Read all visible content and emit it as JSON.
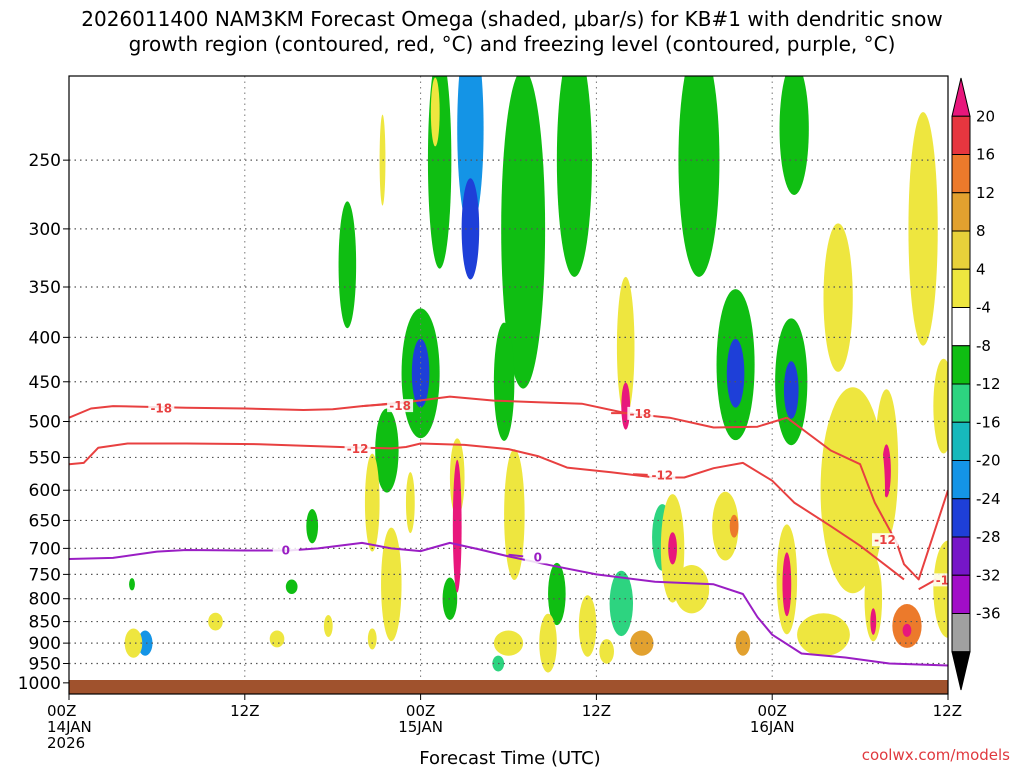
{
  "chart_data": {
    "type": "heatmap",
    "title_lines": [
      "2026011400 NAM3KM Forecast Omega (shaded, μbar/s) for KB#1 with dendritic snow",
      "growth region (contoured, red, °C) and freezing level (contoured, purple, °C)"
    ],
    "xlabel": "Forecast Time (UTC)",
    "x_ticks": [
      {
        "h": 0,
        "lines": [
          "00Z",
          "14JAN",
          "2026"
        ]
      },
      {
        "h": 12,
        "lines": [
          "12Z"
        ]
      },
      {
        "h": 24,
        "lines": [
          "00Z",
          "15JAN"
        ]
      },
      {
        "h": 36,
        "lines": [
          "12Z"
        ]
      },
      {
        "h": 48,
        "lines": [
          "00Z",
          "16JAN"
        ]
      },
      {
        "h": 60,
        "lines": [
          "12Z"
        ]
      }
    ],
    "x_range_hours": [
      0,
      60
    ],
    "y_ticks": [
      250,
      300,
      350,
      400,
      450,
      500,
      550,
      600,
      650,
      700,
      750,
      800,
      850,
      900,
      950,
      1000
    ],
    "y_range_hPa": [
      200,
      1030
    ],
    "y_scale": "log-pressure",
    "grid": true,
    "colorbar": {
      "labels": [
        "20",
        "16",
        "12",
        "8",
        "4",
        "-4",
        "-8",
        "-12",
        "-16",
        "-20",
        "-24",
        "-28",
        "-32",
        "-36"
      ],
      "colors": [
        "#e8177c",
        "#e6363f",
        "#ec7a2b",
        "#e2a12f",
        "#e8d13a",
        "#eee63f",
        "#ffffff",
        "#0fbe12",
        "#2dd480",
        "#17b9bc",
        "#1494e6",
        "#1e3fd8",
        "#7616c8",
        "#a20dc8",
        "#a0a0a0",
        "#000000"
      ]
    },
    "omega_cells": [
      {
        "h": 25.3,
        "p": 250,
        "dh": 0.8,
        "dp": 140,
        "v": -8
      },
      {
        "h": 27.4,
        "p": 230,
        "dh": 0.9,
        "dp": 120,
        "v": -16
      },
      {
        "h": 27.4,
        "p": 300,
        "dh": 0.6,
        "dp": 80,
        "v": -20
      },
      {
        "h": 31.0,
        "p": 300,
        "dh": 1.5,
        "dp": 240,
        "v": -8
      },
      {
        "h": 34.5,
        "p": 250,
        "dh": 1.2,
        "dp": 150,
        "v": -8
      },
      {
        "h": 43.0,
        "p": 250,
        "dh": 1.4,
        "dp": 150,
        "v": -8
      },
      {
        "h": 49.5,
        "p": 230,
        "dh": 1.0,
        "dp": 80,
        "v": -8
      },
      {
        "h": 19.0,
        "p": 330,
        "dh": 0.6,
        "dp": 110,
        "v": -8
      },
      {
        "h": 24.0,
        "p": 440,
        "dh": 1.3,
        "dp": 150,
        "v": -8
      },
      {
        "h": 24.0,
        "p": 440,
        "dh": 0.6,
        "dp": 80,
        "v": -20
      },
      {
        "h": 21.7,
        "p": 540,
        "dh": 0.8,
        "dp": 120,
        "v": -8
      },
      {
        "h": 45.5,
        "p": 430,
        "dh": 1.3,
        "dp": 170,
        "v": -8
      },
      {
        "h": 45.5,
        "p": 440,
        "dh": 0.6,
        "dp": 80,
        "v": -20
      },
      {
        "h": 49.3,
        "p": 450,
        "dh": 1.1,
        "dp": 150,
        "v": -8
      },
      {
        "h": 49.3,
        "p": 460,
        "dh": 0.5,
        "dp": 70,
        "v": -20
      },
      {
        "h": 29.7,
        "p": 450,
        "dh": 0.7,
        "dp": 140,
        "v": -8
      },
      {
        "h": 40.5,
        "p": 680,
        "dh": 0.7,
        "dp": 120,
        "v": -12
      },
      {
        "h": 33.3,
        "p": 790,
        "dh": 0.6,
        "dp": 130,
        "v": -8
      },
      {
        "h": 16.6,
        "p": 660,
        "dh": 0.4,
        "dp": 60,
        "v": -8
      },
      {
        "h": 26.0,
        "p": 800,
        "dh": 0.5,
        "dp": 90,
        "v": -8
      },
      {
        "h": 5.2,
        "p": 900,
        "dh": 0.5,
        "dp": 60,
        "v": -16
      },
      {
        "h": 4.3,
        "p": 770,
        "dh": 0.2,
        "dp": 25,
        "v": -8
      },
      {
        "h": 15.2,
        "p": 775,
        "dh": 0.4,
        "dp": 30,
        "v": -8
      },
      {
        "h": 29.3,
        "p": 950,
        "dh": 0.4,
        "dp": 40,
        "v": -12
      },
      {
        "h": 37.7,
        "p": 810,
        "dh": 0.8,
        "dp": 140,
        "v": -12
      },
      {
        "h": 26.5,
        "p": 580,
        "dh": 0.5,
        "dp": 120,
        "v": 4
      },
      {
        "h": 26.5,
        "p": 660,
        "dh": 0.3,
        "dp": 230,
        "v": 20
      },
      {
        "h": 38.0,
        "p": 410,
        "dh": 0.6,
        "dp": 150,
        "v": 4
      },
      {
        "h": 38.0,
        "p": 480,
        "dh": 0.3,
        "dp": 60,
        "v": 20
      },
      {
        "h": 41.2,
        "p": 700,
        "dh": 0.8,
        "dp": 200,
        "v": 4
      },
      {
        "h": 41.2,
        "p": 700,
        "dh": 0.3,
        "dp": 60,
        "v": 20
      },
      {
        "h": 44.8,
        "p": 660,
        "dh": 0.9,
        "dp": 120,
        "v": 4
      },
      {
        "h": 45.4,
        "p": 660,
        "dh": 0.3,
        "dp": 40,
        "v": 12
      },
      {
        "h": 49.0,
        "p": 760,
        "dh": 0.7,
        "dp": 220,
        "v": 4
      },
      {
        "h": 49.0,
        "p": 770,
        "dh": 0.3,
        "dp": 130,
        "v": 20
      },
      {
        "h": 54.9,
        "p": 800,
        "dh": 0.6,
        "dp": 180,
        "v": 4
      },
      {
        "h": 54.9,
        "p": 850,
        "dh": 0.2,
        "dp": 60,
        "v": 20
      },
      {
        "h": 55.8,
        "p": 560,
        "dh": 0.8,
        "dp": 220,
        "v": 4
      },
      {
        "h": 55.8,
        "p": 570,
        "dh": 0.3,
        "dp": 80,
        "v": 20
      },
      {
        "h": 57.2,
        "p": 860,
        "dh": 1.0,
        "dp": 100,
        "v": 12
      },
      {
        "h": 57.2,
        "p": 870,
        "dh": 0.3,
        "dp": 30,
        "v": 20
      },
      {
        "h": 53.5,
        "p": 600,
        "dh": 2.2,
        "dp": 320,
        "v": 4
      },
      {
        "h": 58.3,
        "p": 300,
        "dh": 1.0,
        "dp": 180,
        "v": 4
      },
      {
        "h": 52.5,
        "p": 360,
        "dh": 1.0,
        "dp": 140,
        "v": 4
      },
      {
        "h": 59.7,
        "p": 480,
        "dh": 0.7,
        "dp": 120,
        "v": 4
      },
      {
        "h": 20.7,
        "p": 620,
        "dh": 0.5,
        "dp": 160,
        "v": 4
      },
      {
        "h": 22.0,
        "p": 770,
        "dh": 0.7,
        "dp": 230,
        "v": 4
      },
      {
        "h": 23.3,
        "p": 620,
        "dh": 0.3,
        "dp": 100,
        "v": 4
      },
      {
        "h": 30.4,
        "p": 640,
        "dh": 0.7,
        "dp": 220,
        "v": 4
      },
      {
        "h": 32.7,
        "p": 900,
        "dh": 0.6,
        "dp": 140,
        "v": 4
      },
      {
        "h": 35.4,
        "p": 860,
        "dh": 0.6,
        "dp": 140,
        "v": 4
      },
      {
        "h": 4.4,
        "p": 900,
        "dh": 0.6,
        "dp": 70,
        "v": 4
      },
      {
        "h": 10.0,
        "p": 850,
        "dh": 0.5,
        "dp": 40,
        "v": 4
      },
      {
        "h": 14.2,
        "p": 890,
        "dh": 0.5,
        "dp": 40,
        "v": 4
      },
      {
        "h": 17.7,
        "p": 860,
        "dh": 0.3,
        "dp": 50,
        "v": 4
      },
      {
        "h": 20.7,
        "p": 890,
        "dh": 0.3,
        "dp": 50,
        "v": 4
      },
      {
        "h": 30.0,
        "p": 900,
        "dh": 1.0,
        "dp": 60,
        "v": 4
      },
      {
        "h": 36.7,
        "p": 920,
        "dh": 0.5,
        "dp": 60,
        "v": 4
      },
      {
        "h": 39.1,
        "p": 900,
        "dh": 0.8,
        "dp": 60,
        "v": 8
      },
      {
        "h": 42.5,
        "p": 780,
        "dh": 1.2,
        "dp": 100,
        "v": 4
      },
      {
        "h": 46.0,
        "p": 900,
        "dh": 0.5,
        "dp": 60,
        "v": 8
      },
      {
        "h": 51.5,
        "p": 880,
        "dh": 1.8,
        "dp": 100,
        "v": 4
      },
      {
        "h": 60.0,
        "p": 780,
        "dh": 1.0,
        "dp": 200,
        "v": 4
      },
      {
        "h": 25.0,
        "p": 220,
        "dh": 0.3,
        "dp": 40,
        "v": 4
      },
      {
        "h": 21.4,
        "p": 250,
        "dh": 0.2,
        "dp": 60,
        "v": 4
      }
    ],
    "contours": [
      {
        "name": "-18",
        "color": "#e84040",
        "points": [
          [
            0,
            495
          ],
          [
            1.5,
            483
          ],
          [
            3,
            480
          ],
          [
            8,
            482
          ],
          [
            12,
            483
          ],
          [
            16,
            485
          ],
          [
            18,
            484
          ],
          [
            20,
            480
          ],
          [
            23,
            475
          ],
          [
            26,
            468
          ],
          [
            29,
            473
          ],
          [
            32,
            475
          ],
          [
            35,
            477
          ],
          [
            38,
            489
          ],
          [
            41,
            495
          ],
          [
            44,
            508
          ],
          [
            47,
            507
          ],
          [
            49,
            495
          ]
        ],
        "label_at": [
          6.3,
          483
        ],
        "label_text": "-18"
      },
      {
        "name": "-18b",
        "color": "#e84040",
        "points": [
          [
            20,
            480
          ],
          [
            21.5,
            478
          ],
          [
            23,
            475
          ]
        ],
        "label_at": [
          22.6,
          480
        ],
        "label_text": "-18"
      },
      {
        "name": "-18c",
        "color": "#e84040",
        "points": [
          [
            37,
            489
          ],
          [
            38.5,
            489
          ]
        ],
        "label_at": [
          39.0,
          490
        ],
        "label_text": "-18"
      },
      {
        "name": "-12",
        "color": "#e84040",
        "points": [
          [
            0,
            560
          ],
          [
            1,
            558
          ],
          [
            2,
            536
          ],
          [
            4,
            530
          ],
          [
            8,
            530
          ],
          [
            13,
            531
          ],
          [
            17,
            534
          ],
          [
            20,
            536
          ],
          [
            22,
            537
          ],
          [
            23,
            535
          ],
          [
            24,
            530
          ],
          [
            27,
            532
          ],
          [
            30,
            538
          ],
          [
            32,
            548
          ],
          [
            34,
            565
          ],
          [
            37,
            572
          ],
          [
            40,
            580
          ],
          [
            42,
            580
          ],
          [
            44,
            566
          ],
          [
            46,
            558
          ],
          [
            48,
            585
          ],
          [
            49.5,
            620
          ],
          [
            52,
            660
          ],
          [
            54,
            695
          ],
          [
            57,
            760
          ]
        ],
        "label_at": [
          19.7,
          538
        ],
        "label_text": "-12"
      },
      {
        "name": "-12b",
        "color": "#e84040",
        "points": [
          [
            49,
            495
          ],
          [
            52,
            540
          ],
          [
            54,
            560
          ],
          [
            55,
            620
          ],
          [
            56.5,
            690
          ],
          [
            57,
            730
          ],
          [
            58,
            760
          ],
          [
            60,
            600
          ]
        ],
        "label_at": [
          55.7,
          685
        ],
        "label_text": "-12"
      },
      {
        "name": "-12c",
        "color": "#e84040",
        "points": [
          [
            38.5,
            575
          ],
          [
            39.5,
            576
          ]
        ],
        "label_at": [
          40.5,
          577
        ],
        "label_text": "-12"
      },
      {
        "name": "-12d",
        "color": "#e84040",
        "points": [
          [
            58,
            780
          ],
          [
            59.2,
            760
          ]
        ],
        "label_at": [
          59.9,
          762
        ],
        "label_text": "-12"
      },
      {
        "name": "0",
        "color": "#9a1ec4",
        "points": [
          [
            0,
            720
          ],
          [
            3,
            718
          ],
          [
            6,
            706
          ],
          [
            8,
            703
          ],
          [
            12,
            704
          ],
          [
            15,
            704
          ],
          [
            17,
            700
          ],
          [
            20,
            690
          ],
          [
            22,
            700
          ],
          [
            24,
            705
          ],
          [
            26,
            690
          ],
          [
            28,
            702
          ],
          [
            30,
            715
          ],
          [
            33,
            733
          ],
          [
            36,
            750
          ],
          [
            40,
            765
          ],
          [
            44,
            770
          ],
          [
            46,
            790
          ],
          [
            47,
            840
          ],
          [
            48,
            880
          ],
          [
            50,
            925
          ],
          [
            53,
            935
          ],
          [
            56,
            950
          ],
          [
            60,
            955
          ]
        ],
        "label_at": [
          14.8,
          704
        ],
        "label_text": "0"
      },
      {
        "name": "0b",
        "color": "#9a1ec4",
        "points": [
          [
            30,
            712
          ],
          [
            31,
            715
          ]
        ],
        "label_at": [
          32.0,
          717
        ],
        "label_text": "0"
      }
    ]
  },
  "credit": "coolwx.com/models"
}
